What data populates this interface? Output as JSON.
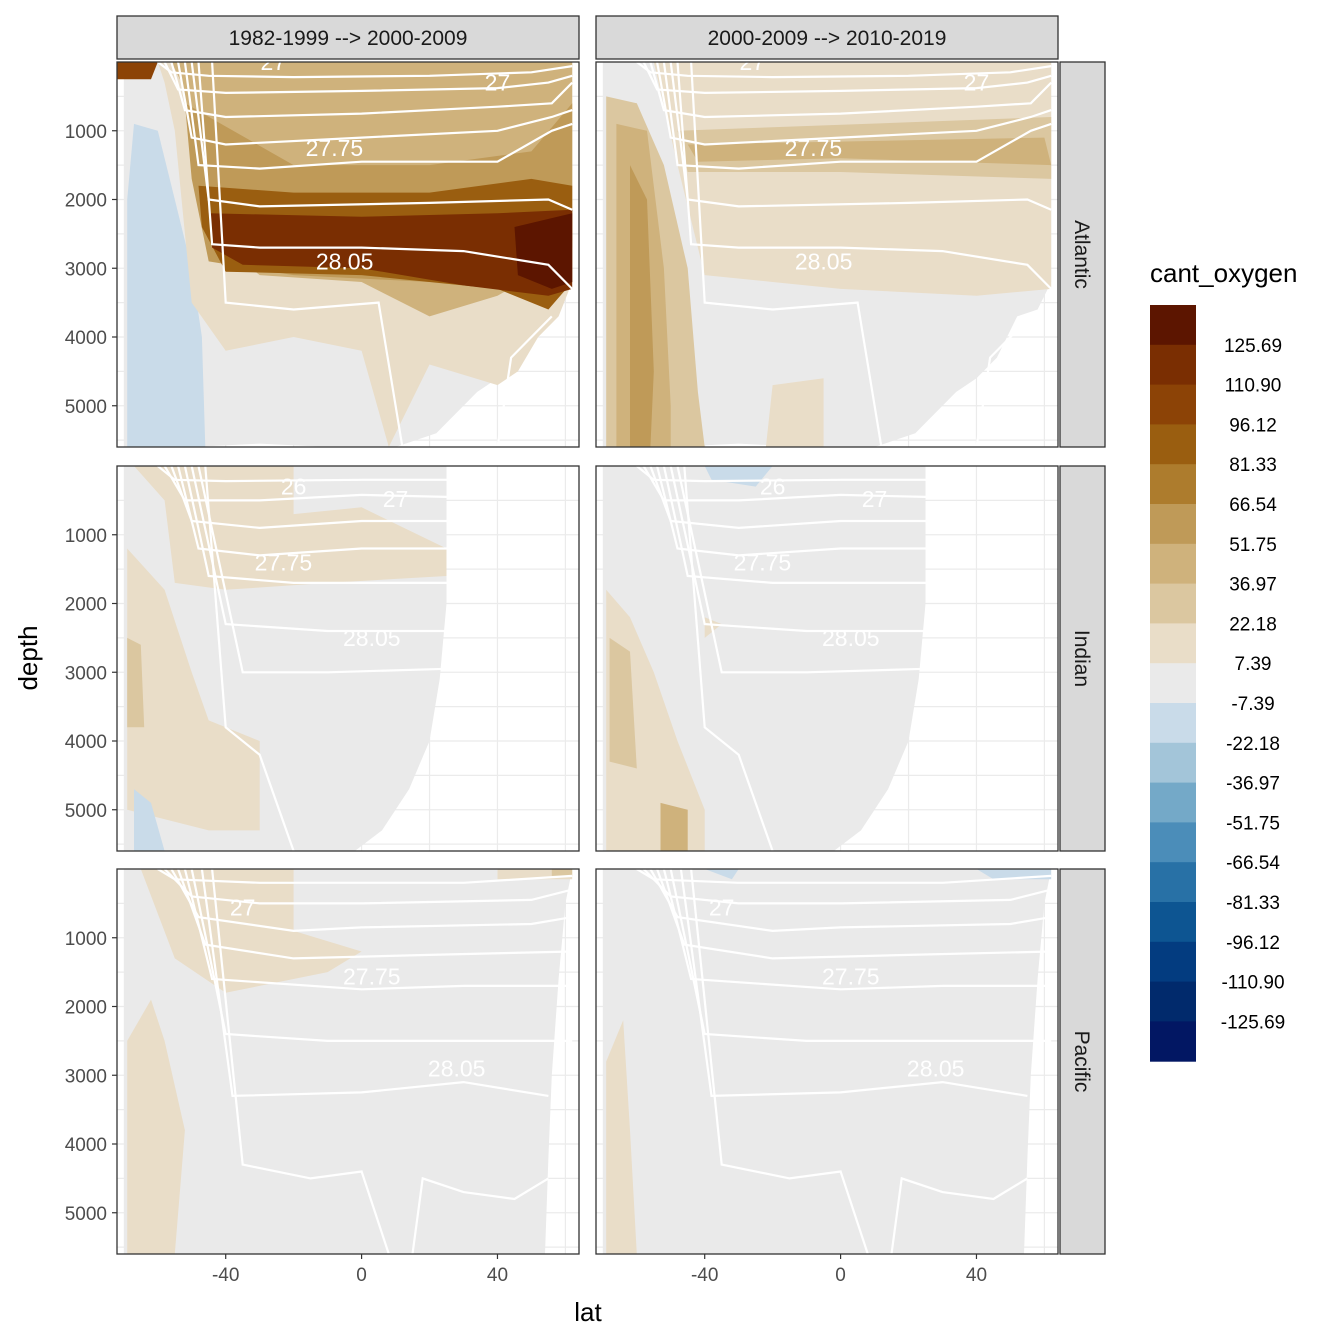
{
  "chart_data": {
    "type": "heatmap",
    "title": "",
    "xlabel": "lat",
    "ylabel": "depth",
    "xlim": [
      -72,
      64
    ],
    "ylim": [
      5600,
      0
    ],
    "x_ticks": [
      "-40",
      "0",
      "40"
    ],
    "y_ticks": [
      "1000",
      "2000",
      "3000",
      "4000",
      "5000"
    ],
    "grid": true,
    "facet_columns": [
      "1982-1999 --> 2000-2009",
      "2000-2009 --> 2010-2019"
    ],
    "facet_rows": [
      "Atlantic",
      "Indian",
      "Pacific"
    ],
    "contour_labels": [
      "26",
      "27",
      "27.75",
      "28.05"
    ],
    "legend": {
      "title": "cant_oxygen",
      "position": "right",
      "labels": [
        "125.69",
        "110.90",
        "96.12",
        "81.33",
        "66.54",
        "51.75",
        "36.97",
        "22.18",
        "7.39",
        "-7.39",
        "-22.18",
        "-36.97",
        "-51.75",
        "-66.54",
        "-81.33",
        "-96.12",
        "-110.90",
        "-125.69"
      ],
      "colors": [
        "#5c1500",
        "#7a2e02",
        "#8c4306",
        "#9a5e10",
        "#ad7c2d",
        "#bf9a58",
        "#cfb27c",
        "#dbc7a0",
        "#e9ddc8",
        "#eaeaea",
        "#c9dbe9",
        "#a3c5d9",
        "#74a9c8",
        "#4b8db9",
        "#2871a6",
        "#0d5592",
        "#033c80",
        "#012a6c",
        "#021763"
      ]
    },
    "panels": [
      {
        "row": "Atlantic",
        "column": "1982-1999 --> 2000-2009",
        "max_lat": 62,
        "notes": "strong positive band 2000-3000 m north of -45"
      },
      {
        "row": "Atlantic",
        "column": "2000-2009 --> 2010-2019",
        "max_lat": 62,
        "notes": "weaker signal; positive in Southern Ocean deep"
      },
      {
        "row": "Indian",
        "column": "1982-1999 --> 2000-2009",
        "max_lat": 25,
        "notes": "moderate positive upper 2000 m"
      },
      {
        "row": "Indian",
        "column": "2000-2009 --> 2010-2019",
        "max_lat": 25,
        "notes": "near zero with Southern Ocean positive"
      },
      {
        "row": "Pacific",
        "column": "1982-1999 --> 2000-2009",
        "max_lat": 62,
        "notes": "positive upper 1500 m south"
      },
      {
        "row": "Pacific",
        "column": "2000-2009 --> 2010-2019",
        "max_lat": 62,
        "notes": "mostly near zero"
      }
    ]
  }
}
